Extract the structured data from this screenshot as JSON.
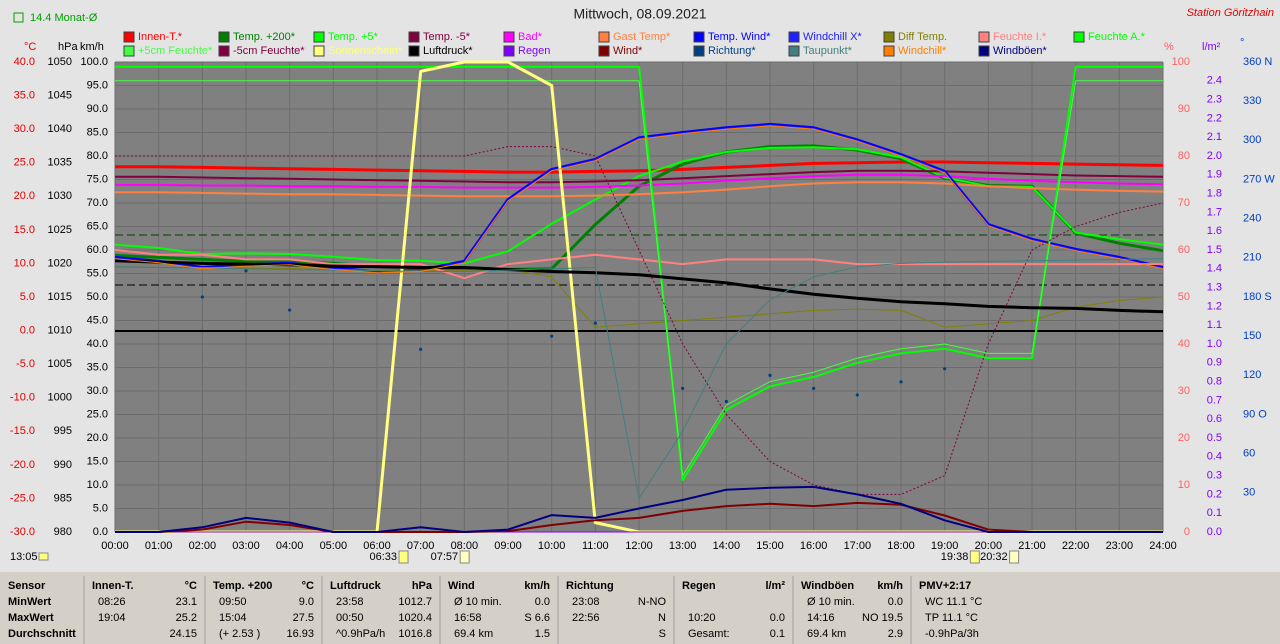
{
  "chart_data": {
    "type": "line",
    "title": "Mittwoch, 08.09.2021",
    "station": "Station Göritzhain",
    "month_avg": "14.4 Monat-Ø",
    "clock": "13:05",
    "events": [
      {
        "label": "06:33"
      },
      {
        "label": "07:57"
      },
      {
        "label": "19:38"
      },
      {
        "label": "20:32"
      }
    ],
    "grid": true,
    "categories": [
      "00:00",
      "01:00",
      "02:00",
      "03:00",
      "04:00",
      "05:00",
      "06:00",
      "07:00",
      "08:00",
      "09:00",
      "10:00",
      "11:00",
      "12:00",
      "13:00",
      "14:00",
      "15:00",
      "16:00",
      "17:00",
      "18:00",
      "19:00",
      "20:00",
      "21:00",
      "22:00",
      "23:00",
      "24:00"
    ],
    "axes": {
      "temp": {
        "label": "°C",
        "color": "#e00000",
        "lim": [
          -30,
          40
        ],
        "ticks": [
          {
            "value": 40,
            "label": "40.0"
          },
          {
            "value": 35,
            "label": "35.0"
          },
          {
            "value": 30,
            "label": "30.0"
          },
          {
            "value": 25,
            "label": "25.0"
          },
          {
            "value": 20,
            "label": "20.0"
          },
          {
            "value": 15,
            "label": "15.0"
          },
          {
            "value": 10,
            "label": "10.0"
          },
          {
            "value": 5,
            "label": "5.0"
          },
          {
            "value": 0,
            "label": "0.0"
          },
          {
            "value": -5,
            "label": "-5.0"
          },
          {
            "value": -10,
            "label": "-10.0"
          },
          {
            "value": -15,
            "label": "-15.0"
          },
          {
            "value": -20,
            "label": "-20.0"
          },
          {
            "value": -25,
            "label": "-25.0"
          },
          {
            "value": -30,
            "label": "-30.0"
          }
        ]
      },
      "hpa": {
        "label": "hPa",
        "color": "#000000",
        "lim": [
          980,
          1050
        ],
        "ticks": [
          1050,
          1045,
          1040,
          1035,
          1030,
          1025,
          1020,
          1015,
          1010,
          1005,
          1000,
          995,
          990,
          985,
          980
        ]
      },
      "kmh": {
        "label": "km/h",
        "color": "#000000",
        "lim": [
          0,
          100
        ],
        "ticks": [
          {
            "value": 100,
            "label": "100.0"
          },
          {
            "value": 95,
            "label": "95.0"
          },
          {
            "value": 90,
            "label": "90.0"
          },
          {
            "value": 85,
            "label": "85.0"
          },
          {
            "value": 80,
            "label": "80.0"
          },
          {
            "value": 75,
            "label": "75.0"
          },
          {
            "value": 70,
            "label": "70.0"
          },
          {
            "value": 65,
            "label": "65.0"
          },
          {
            "value": 60,
            "label": "60.0"
          },
          {
            "value": 55,
            "label": "55.0"
          },
          {
            "value": 50,
            "label": "50.0"
          },
          {
            "value": 45,
            "label": "45.0"
          },
          {
            "value": 40,
            "label": "40.0"
          },
          {
            "value": 35,
            "label": "35.0"
          },
          {
            "value": 30,
            "label": "30.0"
          },
          {
            "value": 25,
            "label": "25.0"
          },
          {
            "value": 20,
            "label": "20.0"
          },
          {
            "value": 15,
            "label": "15.0"
          },
          {
            "value": 10,
            "label": "10.0"
          },
          {
            "value": 5,
            "label": "5.0"
          },
          {
            "value": 0,
            "label": "0.0"
          }
        ]
      },
      "pct": {
        "label": "%",
        "color": "#ff6060",
        "lim": [
          0,
          100
        ],
        "ticks": [
          100,
          90,
          80,
          70,
          60,
          50,
          40,
          30,
          20,
          10,
          0
        ]
      },
      "rain": {
        "label": "l/m²",
        "color": "#8000ff",
        "lim": [
          0,
          2.5
        ],
        "ticks": [
          2.4,
          2.3,
          2.2,
          2.1,
          {
            "value": 2,
            "label": "2.0"
          },
          1.9,
          1.8,
          1.7,
          1.6,
          1.5,
          1.4,
          1.3,
          1.2,
          1.1,
          {
            "value": 1,
            "label": "1.0"
          },
          0.9,
          0.8,
          0.7,
          0.6,
          0.5,
          0.4,
          0.3,
          0.2,
          0.1,
          {
            "value": 0,
            "label": "0.0"
          }
        ]
      },
      "deg": {
        "label": "°",
        "color": "#0040c0",
        "lim": [
          0,
          360
        ],
        "ticks": [
          {
            "value": 360,
            "label": "360 N"
          },
          330,
          300,
          {
            "value": 270,
            "label": "270 W"
          },
          240,
          210,
          {
            "value": 180,
            "label": "180 S"
          },
          150,
          120,
          {
            "value": 90,
            "label": "90 O"
          },
          60,
          30
        ]
      }
    },
    "series": [
      {
        "name": "Innen-T.*",
        "color": "#ff0000",
        "axis": "temp",
        "width": 3,
        "values": [
          24.4,
          24.4,
          24.3,
          24.2,
          24.1,
          24.0,
          23.9,
          23.8,
          23.7,
          23.6,
          23.6,
          23.7,
          23.8,
          24.0,
          24.3,
          24.6,
          24.9,
          25.0,
          25.1,
          25.1,
          25.0,
          24.9,
          24.8,
          24.7,
          24.6
        ]
      },
      {
        "name": "Temp. +200*",
        "color": "#008000",
        "axis": "temp",
        "width": 3,
        "values": [
          11.2,
          10.9,
          10.6,
          10.3,
          10.3,
          10.0,
          9.6,
          9.4,
          9.2,
          9.1,
          9.2,
          15.8,
          21.5,
          24.8,
          26.6,
          27.4,
          27.5,
          26.9,
          25.6,
          22.7,
          21.6,
          21.5,
          14.5,
          13.0,
          11.9
        ]
      },
      {
        "name": "Temp. +5*",
        "color": "#00ff00",
        "axis": "temp",
        "width": 2,
        "values": [
          12.8,
          12.3,
          11.4,
          11.5,
          11.4,
          11.0,
          10.5,
          10.4,
          10.0,
          11.8,
          15.9,
          19.5,
          23.0,
          25.2,
          26.6,
          27.2,
          27.3,
          27.0,
          25.8,
          22.8,
          21.5,
          21.4,
          14.6,
          13.6,
          12.8
        ]
      },
      {
        "name": "Temp. -5*",
        "color": "#800040",
        "axis": "temp",
        "width": 2,
        "values": [
          22.9,
          22.9,
          22.8,
          22.7,
          22.6,
          22.5,
          22.4,
          22.3,
          22.2,
          22.1,
          22.1,
          22.2,
          22.4,
          22.7,
          23.0,
          23.3,
          23.6,
          23.8,
          23.8,
          23.7,
          23.5,
          23.3,
          23.1,
          23.0,
          22.9
        ]
      },
      {
        "name": "Bad*",
        "color": "#ff00ff",
        "axis": "temp",
        "width": 2,
        "values": [
          21.7,
          21.7,
          21.6,
          21.6,
          21.5,
          21.5,
          21.4,
          21.4,
          21.3,
          21.3,
          21.3,
          21.4,
          21.6,
          21.9,
          22.3,
          22.7,
          23.0,
          23.2,
          23.2,
          23.0,
          22.6,
          22.3,
          22.1,
          21.9,
          21.8
        ]
      },
      {
        "name": "Gast Temp*",
        "color": "#ff8040",
        "axis": "temp",
        "width": 2,
        "values": [
          20.6,
          20.6,
          20.5,
          20.4,
          20.3,
          20.3,
          20.2,
          20.1,
          20.0,
          20.0,
          20.0,
          20.1,
          20.3,
          20.6,
          21.0,
          21.5,
          21.9,
          22.1,
          22.1,
          21.9,
          21.5,
          21.2,
          21.0,
          20.8,
          20.7
        ]
      },
      {
        "name": "Temp. Wind*",
        "color": "#0000ff",
        "axis": "temp",
        "width": 3,
        "values": [
          10.9,
          10.3,
          9.4,
          9.8,
          10.0,
          9.3,
          8.8,
          9.0,
          10.3,
          19.5,
          24.0,
          25.5,
          28.7,
          29.5,
          30.2,
          30.7,
          30.2,
          28.4,
          26.2,
          23.7,
          15.8,
          13.6,
          12.1,
          10.9,
          9.4
        ]
      },
      {
        "name": "Windchill X*",
        "color": "#2020ff",
        "axis": "temp",
        "width": 1,
        "values": [
          10.8,
          10.2,
          9.3,
          9.7,
          9.9,
          9.2,
          8.7,
          8.9,
          10.2,
          19.4,
          23.9,
          25.4,
          28.6,
          29.4,
          30.1,
          30.6,
          30.1,
          28.3,
          26.1,
          23.6,
          15.7,
          13.5,
          12.0,
          10.8,
          9.3
        ]
      },
      {
        "name": "Diff Temp.",
        "color": "#808000",
        "axis": "temp",
        "width": 1,
        "values": [
          9.5,
          9.4,
          9.4,
          9.3,
          9.2,
          9.1,
          9.0,
          9.0,
          9.0,
          9.1,
          8.0,
          0.5,
          1.0,
          1.5,
          2.0,
          2.5,
          3.0,
          3.2,
          3.0,
          0.5,
          1.0,
          1.5,
          3.5,
          4.5,
          5.0
        ]
      },
      {
        "name": "Feuchte I.*",
        "color": "#ff8080",
        "axis": "pct",
        "width": 2,
        "values": [
          60,
          59,
          59,
          58,
          58,
          57,
          57,
          57,
          54,
          57,
          58,
          59,
          58,
          57,
          58,
          58,
          58,
          57,
          57,
          57,
          57,
          57,
          57,
          57,
          57
        ]
      },
      {
        "name": "Feuchte A.*",
        "color": "#00ff00",
        "axis": "pct",
        "width": 2,
        "values": [
          99,
          99,
          99,
          99,
          99,
          99,
          99,
          99,
          99,
          99,
          99,
          99,
          99,
          11,
          26,
          31,
          33,
          36,
          38,
          39,
          37,
          37,
          99,
          99,
          99
        ]
      },
      {
        "name": "+5cm Feuchte*",
        "color": "#40ff40",
        "axis": "pct",
        "width": 1,
        "values": [
          96,
          96,
          96,
          96,
          96,
          96,
          96,
          96,
          96,
          96,
          96,
          96,
          96,
          12,
          27,
          32,
          34,
          37,
          39,
          40,
          38,
          38,
          96,
          96,
          96
        ]
      },
      {
        "name": "-5cm Feuchte*",
        "color": "#800040",
        "axis": "pct",
        "width": 1,
        "dash": true,
        "values": [
          80,
          80,
          80,
          80,
          80,
          80,
          80,
          80,
          80,
          82,
          82,
          80,
          60,
          40,
          25,
          15,
          10,
          8,
          8,
          12,
          40,
          60,
          65,
          68,
          70
        ]
      },
      {
        "name": "Sonnenschein*",
        "color": "#ffff80",
        "axis": "pct",
        "width": 3,
        "values": [
          0,
          0,
          0,
          0,
          0,
          0,
          0,
          98,
          100,
          100,
          95,
          2,
          0,
          0,
          0,
          0,
          0,
          0,
          0,
          0,
          0,
          0,
          0,
          0,
          0
        ]
      },
      {
        "name": "Luftdruck*",
        "color": "#000000",
        "axis": "hpa",
        "width": 3,
        "values": [
          1020.4,
          1020.2,
          1020.0,
          1019.9,
          1019.8,
          1019.6,
          1019.5,
          1019.4,
          1019.4,
          1019.1,
          1018.8,
          1018.6,
          1018.3,
          1017.7,
          1017.1,
          1016.2,
          1015.4,
          1014.8,
          1014.3,
          1014.0,
          1013.6,
          1013.4,
          1013.3,
          1013.0,
          1012.8
        ]
      },
      {
        "name": "Regen",
        "color": "#8000ff",
        "axis": "rain",
        "width": 1,
        "values": [
          0,
          0,
          0,
          0,
          0,
          0,
          0,
          0,
          0,
          0,
          0,
          0,
          0,
          0,
          0,
          0,
          0,
          0,
          0,
          0,
          0,
          0,
          0,
          0,
          0
        ]
      },
      {
        "name": "Wind*",
        "color": "#800000",
        "axis": "kmh",
        "width": 2,
        "values": [
          0,
          0,
          0.5,
          2.2,
          1.5,
          0,
          0,
          0,
          0,
          0.2,
          1.5,
          2.5,
          3.0,
          4.5,
          5.5,
          6.0,
          5.5,
          6.2,
          5.8,
          3.5,
          0.5,
          0,
          0,
          0,
          0
        ]
      },
      {
        "name": "Richtung*",
        "color": "#004080",
        "axis": "deg",
        "points": true,
        "values": [
          null,
          null,
          180,
          200,
          170,
          null,
          null,
          140,
          null,
          null,
          150,
          160,
          null,
          110,
          100,
          120,
          110,
          105,
          115,
          125,
          null,
          null,
          null,
          null,
          null
        ]
      },
      {
        "name": "Taupunkt*",
        "color": "#408080",
        "axis": "temp",
        "width": 1,
        "values": [
          9.5,
          9.4,
          9.3,
          9.2,
          9.1,
          9.0,
          8.9,
          8.8,
          8.8,
          9.0,
          9.2,
          9.4,
          -25.0,
          -15.0,
          -2.0,
          4.6,
          8.0,
          9.5,
          10.0,
          10.2,
          10.3,
          10.4,
          10.5,
          10.6,
          10.7
        ]
      },
      {
        "name": "Windchill*",
        "color": "#ff8000",
        "axis": "temp",
        "width": 1,
        "values": [
          10.7,
          10.1,
          9.2,
          9.6,
          9.8,
          9.1,
          8.6,
          8.8,
          10.1,
          19.3,
          23.8,
          25.3,
          28.5,
          29.3,
          30.0,
          30.5,
          30.0,
          28.2,
          26.0,
          23.5,
          15.6,
          13.4,
          11.9,
          10.7,
          9.2
        ]
      },
      {
        "name": "Windböen*",
        "color": "#000080",
        "axis": "kmh",
        "width": 2,
        "values": [
          0,
          0,
          1.0,
          3.0,
          2.0,
          0,
          0,
          1.0,
          0,
          0.5,
          3.6,
          3.0,
          5.0,
          6.8,
          9.0,
          9.4,
          9.6,
          8.0,
          6.0,
          2.5,
          0,
          0,
          0,
          0,
          0
        ]
      }
    ]
  },
  "stats": {
    "sensor": [
      "Sensor",
      "MinWert",
      "MaxWert",
      "Durchschnitt"
    ],
    "groups": [
      {
        "title": "Innen-T.",
        "unit": "°C",
        "rows": [
          [
            "08:26",
            "23.1"
          ],
          [
            "19:04",
            "25.2"
          ],
          [
            null,
            "24.15"
          ]
        ]
      },
      {
        "title": "Temp. +200",
        "unit": "°C",
        "rows": [
          [
            "09:50",
            "9.0"
          ],
          [
            "15:04",
            "27.5"
          ],
          [
            "(+ 2.53 )",
            "16.93"
          ]
        ]
      },
      {
        "title": "Luftdruck",
        "unit": "hPa",
        "rows": [
          [
            "23:58",
            "1012.7"
          ],
          [
            "00:50",
            "1020.4"
          ],
          [
            "^0.9hPa/h",
            "1016.8"
          ]
        ]
      },
      {
        "title": "Wind",
        "unit": "km/h",
        "rows": [
          [
            "Ø 10 min.",
            "0.0"
          ],
          [
            "16:58",
            "S 6.6"
          ],
          [
            "69.4 km",
            "1.5"
          ]
        ]
      },
      {
        "title": "Richtung",
        "rows": [
          [
            "23:08",
            "N-NO"
          ],
          [
            "22:56",
            "N"
          ],
          [
            null,
            "S"
          ]
        ]
      },
      {
        "title": "Regen",
        "unit": "l/m²",
        "rows": [
          [
            null,
            null
          ],
          [
            "10:20",
            "0.0"
          ],
          [
            "Gesamt:",
            "0.1"
          ]
        ]
      },
      {
        "title": "Windböen",
        "unit": "km/h",
        "rows": [
          [
            "Ø 10 min.",
            "0.0"
          ],
          [
            "14:16",
            "NO 19.5"
          ],
          [
            "69.4 km",
            "2.9"
          ]
        ]
      },
      {
        "title": "PMV+2:17",
        "rows": [
          [
            "WC 11.1 °C"
          ],
          [
            "TP 11.1 °C"
          ],
          [
            "-0.9hPa/3h"
          ]
        ]
      }
    ]
  }
}
